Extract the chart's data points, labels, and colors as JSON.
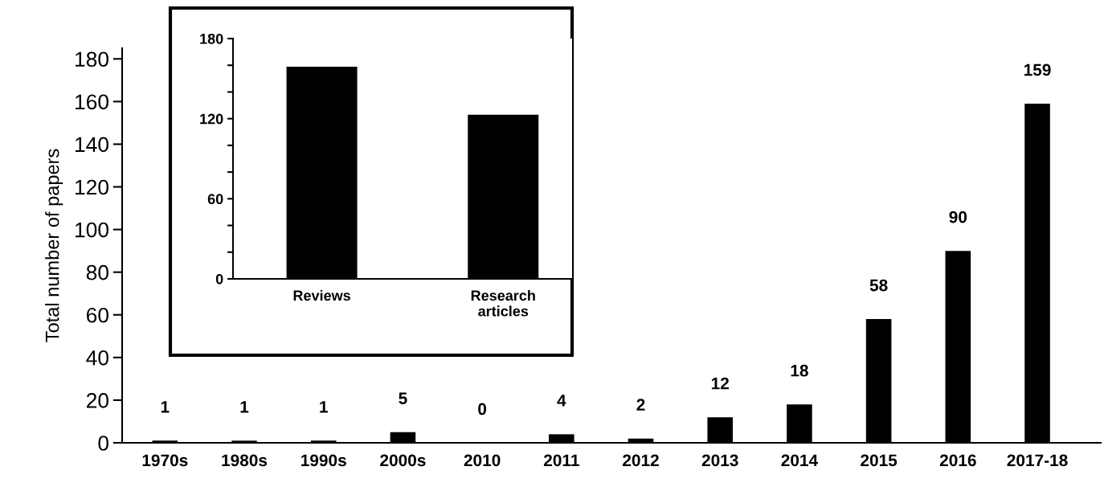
{
  "chart_data": [
    {
      "type": "bar",
      "ylabel": "Total number of papers",
      "categories": [
        "1970s",
        "1980s",
        "1990s",
        "2000s",
        "2010",
        "2011",
        "2012",
        "2013",
        "2014",
        "2015",
        "2016",
        "2017-18"
      ],
      "values": [
        1,
        1,
        1,
        5,
        0,
        4,
        2,
        12,
        18,
        58,
        90,
        159
      ],
      "color": "#000000",
      "ylim": [
        0,
        185
      ],
      "yticks": [
        0,
        20,
        40,
        60,
        80,
        100,
        120,
        140,
        160,
        180
      ],
      "data_labels": true,
      "grid": false,
      "legend": false
    },
    {
      "type": "bar",
      "categories": [
        "Reviews",
        "Research\narticles"
      ],
      "values": [
        159,
        123
      ],
      "color": "#000000",
      "ylim": [
        0,
        180
      ],
      "yticks": [
        0,
        {
          "value": 20,
          "label": null
        },
        {
          "value": 40,
          "label": null
        },
        60,
        {
          "value": 80,
          "label": null
        },
        {
          "value": 100,
          "label": null
        },
        120,
        {
          "value": 140,
          "label": null
        },
        {
          "value": 160,
          "label": null
        },
        180
      ],
      "grid": false,
      "legend": false
    }
  ]
}
